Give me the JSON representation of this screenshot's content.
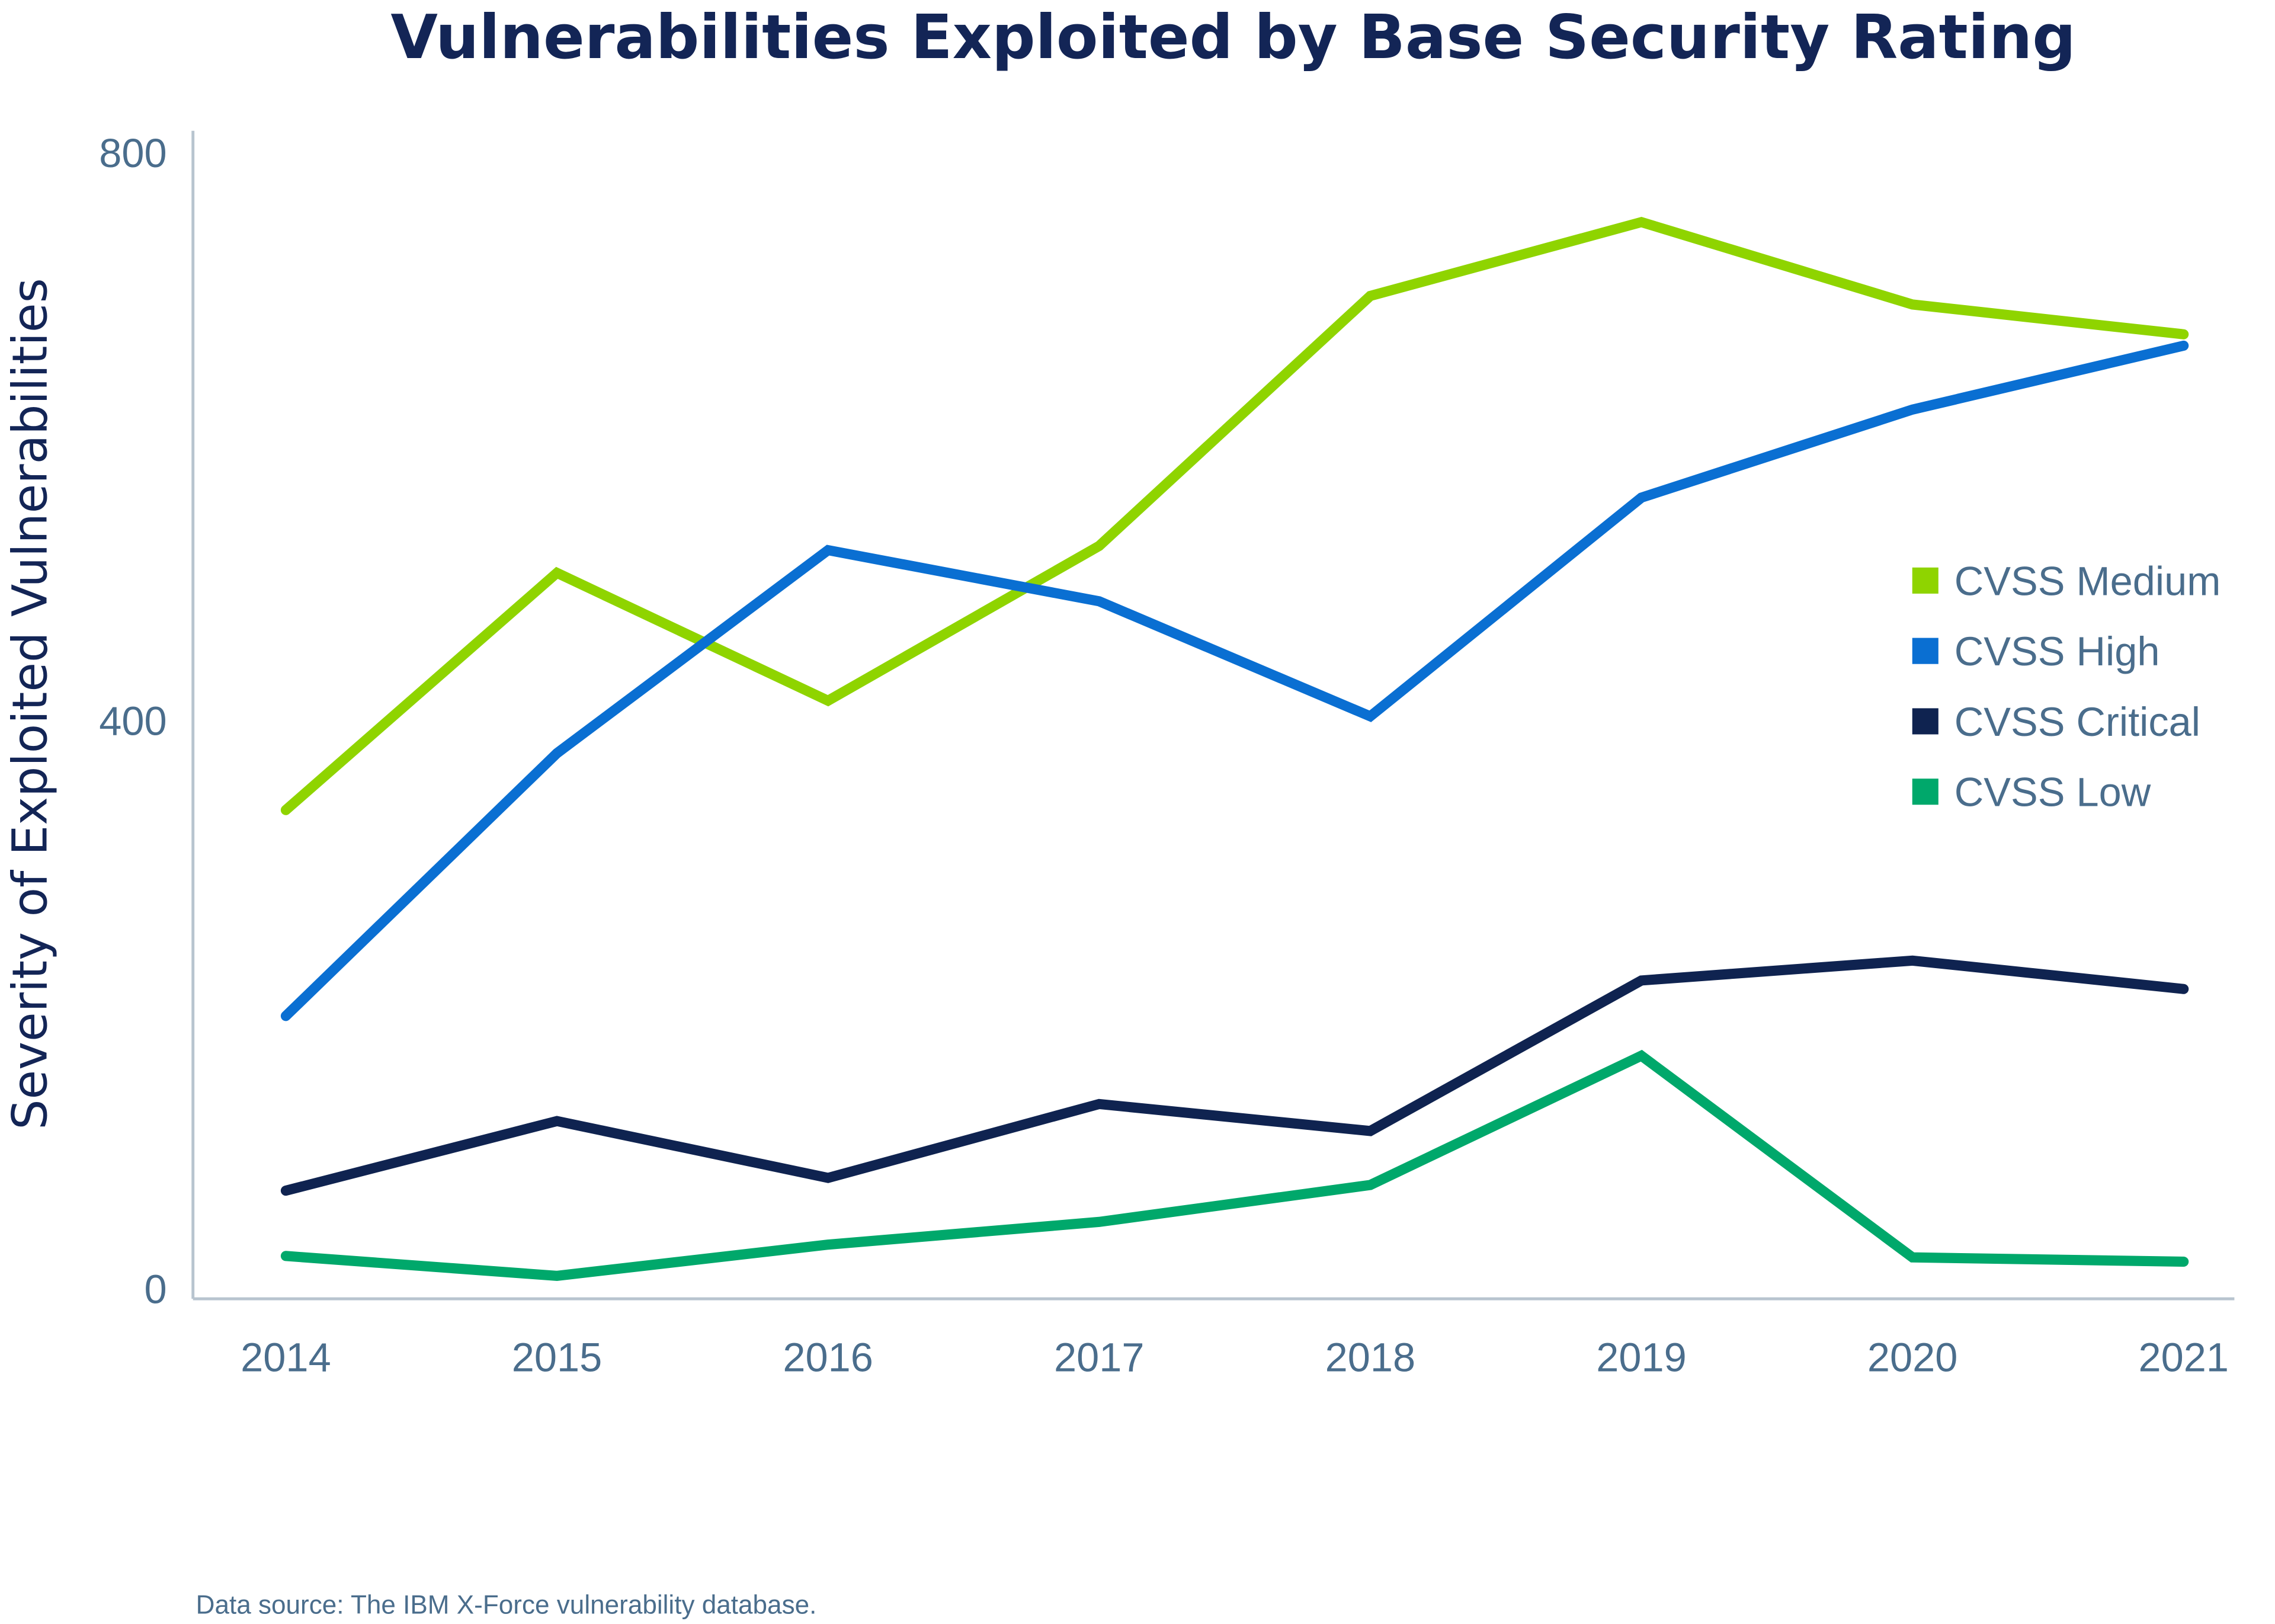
{
  "chart_data": {
    "type": "line",
    "title": "Vulnerabilities Exploited by Base Security Rating",
    "xlabel": "",
    "ylabel": "Severity of Exploited Vulnerabilities",
    "x": [
      "2014",
      "2015",
      "2016",
      "2017",
      "2018",
      "2019",
      "2020",
      "2021"
    ],
    "yticks": [
      "0",
      "400",
      "800"
    ],
    "ylim": [
      0,
      800
    ],
    "grid": false,
    "legend": "right",
    "series": [
      {
        "name": "CVSS Medium",
        "color": "#8fd400",
        "values": [
          337,
          504,
          414,
          523,
          699,
          751,
          693,
          672
        ]
      },
      {
        "name": "CVSS High",
        "color": "#0a6fd2",
        "values": [
          192,
          377,
          520,
          484,
          403,
          557,
          619,
          664
        ]
      },
      {
        "name": "CVSS Critical",
        "color": "#0f2350",
        "values": [
          69,
          118,
          78,
          130,
          111,
          217,
          231,
          211
        ]
      },
      {
        "name": "CVSS Low",
        "color": "#00a86b",
        "values": [
          23,
          9,
          31,
          47,
          73,
          164,
          22,
          19
        ]
      }
    ],
    "source": "Data source: The IBM X-Force vulnerability database."
  }
}
